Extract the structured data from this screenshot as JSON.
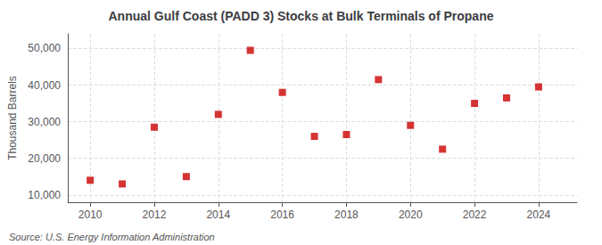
{
  "chart_data": {
    "type": "scatter",
    "title": "Annual Gulf Coast (PADD 3) Stocks at Bulk Terminals of Propane",
    "ylabel": "Thousand Barrels",
    "source": "Source: U.S. Energy Information Administration",
    "x": [
      2010,
      2011,
      2012,
      2013,
      2014,
      2015,
      2016,
      2017,
      2018,
      2019,
      2020,
      2021,
      2022,
      2023,
      2024
    ],
    "values": [
      14000,
      13000,
      28500,
      15000,
      32000,
      49500,
      38000,
      26000,
      26500,
      41500,
      29000,
      22500,
      35000,
      36500,
      39500
    ],
    "color": "#cc0000",
    "marker": "square",
    "xlim": [
      2009.3,
      2025.2
    ],
    "xticks": [
      2010,
      2012,
      2014,
      2016,
      2018,
      2020,
      2022,
      2024
    ],
    "ylim": [
      8000,
      54000
    ],
    "yticks": [
      {
        "value": 10000,
        "label": "10,000"
      },
      {
        "value": 20000,
        "label": "20,000"
      },
      {
        "value": 30000,
        "label": "30,000"
      },
      {
        "value": 40000,
        "label": "40,000"
      },
      {
        "value": 50000,
        "label": "50,000"
      }
    ],
    "grid": true
  }
}
